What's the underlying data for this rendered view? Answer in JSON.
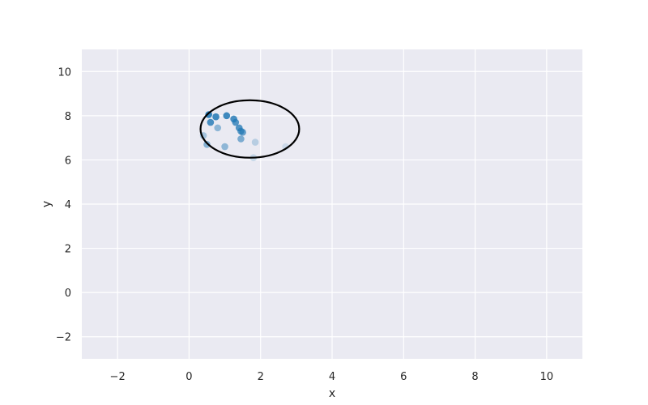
{
  "chart_data": {
    "type": "scatter",
    "title": "",
    "xlabel": "x",
    "ylabel": "y",
    "xlim": [
      -3,
      11
    ],
    "ylim": [
      -3,
      11
    ],
    "xticks": [
      -2,
      0,
      2,
      4,
      6,
      8,
      10
    ],
    "yticks": [
      -2,
      0,
      2,
      4,
      6,
      8,
      10
    ],
    "grid": true,
    "colors": {
      "background": "#eaeaf2",
      "grid": "#ffffff",
      "point": "#1f77b4",
      "ellipse": "#000000"
    },
    "points": [
      {
        "x": 0.55,
        "y": 8.05,
        "alpha": 0.9
      },
      {
        "x": 0.75,
        "y": 7.95,
        "alpha": 0.85
      },
      {
        "x": 1.05,
        "y": 8.0,
        "alpha": 0.85
      },
      {
        "x": 1.25,
        "y": 7.85,
        "alpha": 0.8
      },
      {
        "x": 0.6,
        "y": 7.7,
        "alpha": 0.8
      },
      {
        "x": 1.3,
        "y": 7.7,
        "alpha": 0.75
      },
      {
        "x": 1.4,
        "y": 7.45,
        "alpha": 0.75
      },
      {
        "x": 1.45,
        "y": 7.3,
        "alpha": 0.7
      },
      {
        "x": 1.5,
        "y": 7.25,
        "alpha": 0.65
      },
      {
        "x": 0.8,
        "y": 7.45,
        "alpha": 0.45
      },
      {
        "x": 1.45,
        "y": 6.95,
        "alpha": 0.55
      },
      {
        "x": 0.5,
        "y": 6.7,
        "alpha": 0.5
      },
      {
        "x": 1.0,
        "y": 6.6,
        "alpha": 0.45
      },
      {
        "x": 0.4,
        "y": 7.1,
        "alpha": 0.35
      },
      {
        "x": 1.85,
        "y": 6.8,
        "alpha": 0.25
      },
      {
        "x": 1.8,
        "y": 6.1,
        "alpha": 0.2
      },
      {
        "x": 2.7,
        "y": 6.6,
        "alpha": 0.15
      }
    ],
    "ellipse": {
      "cx": 1.7,
      "cy": 7.4,
      "rx": 1.38,
      "ry": 1.3,
      "stroke_width": 2.2
    }
  }
}
